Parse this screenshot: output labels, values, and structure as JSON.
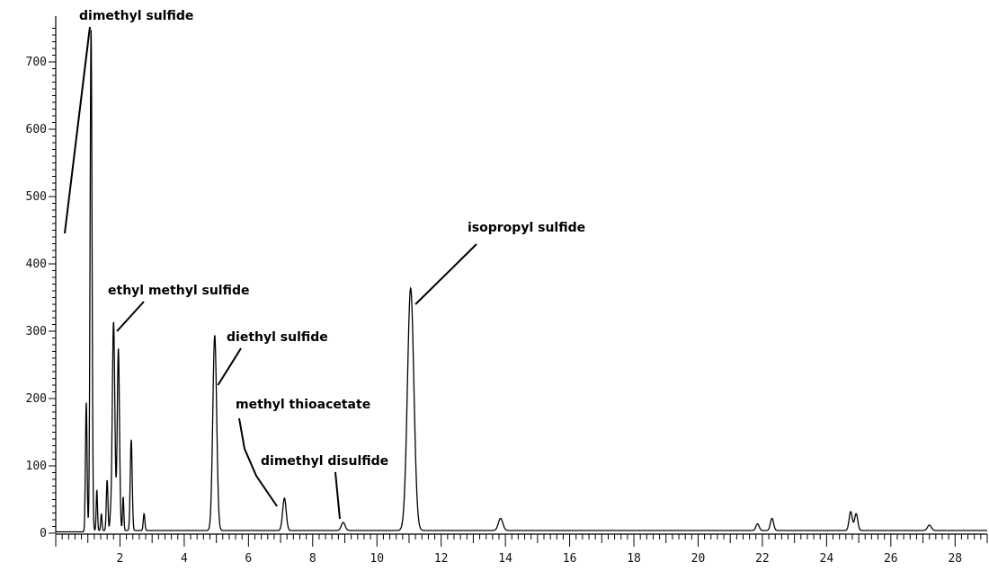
{
  "chart_data": {
    "type": "line",
    "title": "",
    "xlabel": "",
    "ylabel": "",
    "xlim": [
      0,
      29
    ],
    "ylim": [
      0,
      760
    ],
    "grid": false,
    "x_tick_labels": [
      "2",
      "4",
      "6",
      "8",
      "10",
      "12",
      "14",
      "16",
      "18",
      "20",
      "22",
      "24",
      "26",
      "28"
    ],
    "y_tick_labels": [
      "0",
      "100",
      "200",
      "300",
      "400",
      "500",
      "600",
      "700"
    ],
    "series": [
      {
        "peaks": [
          {
            "x": 0.95,
            "h": 190,
            "w": 0.025
          },
          {
            "x": 1.1,
            "h": 745,
            "w": 0.03
          },
          {
            "x": 1.28,
            "h": 60,
            "w": 0.02
          },
          {
            "x": 1.42,
            "h": 25,
            "w": 0.02
          },
          {
            "x": 1.6,
            "h": 75,
            "w": 0.025
          },
          {
            "x": 1.7,
            "h": 15,
            "w": 0.02
          },
          {
            "x": 1.8,
            "h": 310,
            "w": 0.04
          },
          {
            "x": 1.95,
            "h": 270,
            "w": 0.035
          },
          {
            "x": 2.1,
            "h": 50,
            "w": 0.02
          },
          {
            "x": 2.35,
            "h": 135,
            "w": 0.03
          },
          {
            "x": 2.75,
            "h": 25,
            "w": 0.025
          },
          {
            "x": 4.95,
            "h": 290,
            "w": 0.06
          },
          {
            "x": 7.12,
            "h": 48,
            "w": 0.055
          },
          {
            "x": 8.95,
            "h": 12,
            "w": 0.06
          },
          {
            "x": 11.05,
            "h": 360,
            "w": 0.1
          },
          {
            "x": 13.85,
            "h": 18,
            "w": 0.07
          },
          {
            "x": 21.85,
            "h": 10,
            "w": 0.05
          },
          {
            "x": 22.3,
            "h": 18,
            "w": 0.05
          },
          {
            "x": 24.75,
            "h": 28,
            "w": 0.05
          },
          {
            "x": 24.92,
            "h": 25,
            "w": 0.05
          },
          {
            "x": 27.2,
            "h": 8,
            "w": 0.06
          }
        ]
      }
    ],
    "annotations": [
      {
        "label": "dimethyl sulfide",
        "x": 1.1,
        "y": 745
      },
      {
        "label": "ethyl methyl sulfide",
        "x": 1.85,
        "y": 300
      },
      {
        "label": "diethyl sulfide",
        "x": 5.05,
        "y": 220
      },
      {
        "label": "methyl thioacetate",
        "x": 7.0,
        "y": 40
      },
      {
        "label": "dimethyl disulfide",
        "x": 8.95,
        "y": 15
      },
      {
        "label": "isopropyl sulfide",
        "x": 11.2,
        "y": 340
      }
    ]
  }
}
